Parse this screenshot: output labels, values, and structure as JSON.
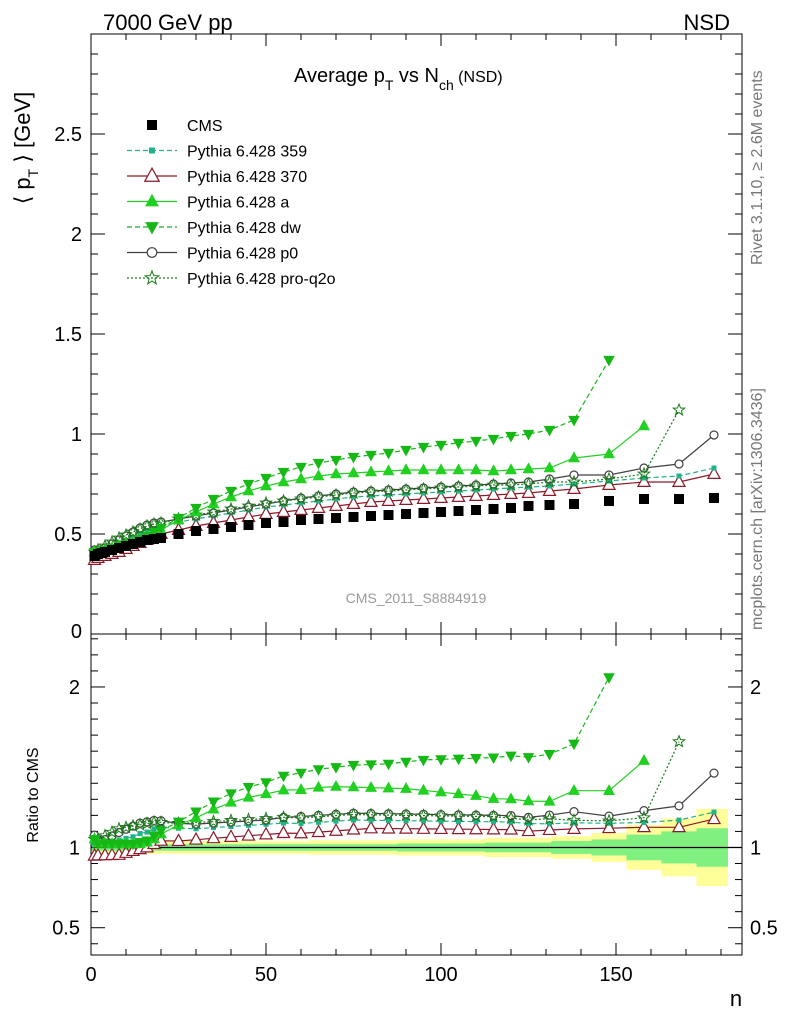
{
  "header": {
    "left": "7000 GeV pp",
    "right": "NSD"
  },
  "title": {
    "main": "Average p",
    "sub_T": "T",
    "mid": " vs N",
    "sub_ch": "ch",
    "tail": " (NSD)"
  },
  "ylabel_top": {
    "open": "⟨ p",
    "sub": "T",
    "close": " ⟩ [GeV]"
  },
  "ylabel_bottom": "Ratio to CMS",
  "xlabel": "n",
  "watermark": "CMS_2011_S8884919",
  "side_text_top": "Rivet 3.1.10, ≥ 2.6M events",
  "side_text_bottom": "mcplots.cern.ch [arXiv:1306.3436]",
  "colors": {
    "cms": "#000000",
    "p359": "#20b28a",
    "p370": "#8b1a2b",
    "pa": "#22d022",
    "pdw": "#16b816",
    "pp0": "#404040",
    "pq2o": "#1a7a1a",
    "band_yellow": "#ffff99",
    "band_green": "#80f080"
  },
  "chart_data": [
    {
      "type": "line",
      "xlim": [
        0,
        186
      ],
      "ylim": [
        0,
        3.0
      ],
      "yticks": [
        0.5,
        1,
        1.5,
        2,
        2.5
      ],
      "ytick_labels": [
        "0.5",
        "1",
        "1.5",
        "2",
        "2.5"
      ],
      "ytick_zero_label": "0",
      "xticks": [
        0,
        50,
        100,
        150
      ],
      "xtick_labels": [
        "0",
        "50",
        "100",
        "150"
      ],
      "legend_placement": "top-left",
      "series": [
        {
          "name": "CMS",
          "key": "cms",
          "marker": "square-filled",
          "style": "none",
          "x": [
            1,
            2,
            3,
            4,
            6,
            8,
            10,
            12,
            14,
            16,
            18,
            20,
            25,
            30,
            35,
            40,
            45,
            50,
            55,
            60,
            65,
            70,
            75,
            80,
            85,
            90,
            95,
            100,
            105,
            110,
            115,
            120,
            125,
            131,
            138,
            148,
            158,
            168,
            178
          ],
          "y": [
            0.39,
            0.4,
            0.405,
            0.41,
            0.42,
            0.43,
            0.44,
            0.45,
            0.46,
            0.47,
            0.475,
            0.48,
            0.5,
            0.515,
            0.525,
            0.535,
            0.545,
            0.555,
            0.56,
            0.57,
            0.575,
            0.58,
            0.585,
            0.59,
            0.595,
            0.6,
            0.605,
            0.61,
            0.615,
            0.62,
            0.625,
            0.63,
            0.64,
            0.645,
            0.65,
            0.665,
            0.675,
            0.675,
            0.68
          ]
        },
        {
          "name": "Pythia 6.428 359",
          "key": "p359",
          "marker": "square-small",
          "style": "dashed",
          "x": [
            1,
            2,
            4,
            6,
            8,
            10,
            12,
            14,
            16,
            18,
            20,
            25,
            30,
            35,
            40,
            45,
            50,
            55,
            60,
            65,
            70,
            75,
            80,
            85,
            90,
            95,
            100,
            105,
            110,
            115,
            120,
            125,
            131,
            138,
            148,
            158,
            168,
            178
          ],
          "y": [
            0.4,
            0.41,
            0.42,
            0.435,
            0.45,
            0.465,
            0.48,
            0.5,
            0.515,
            0.53,
            0.54,
            0.56,
            0.575,
            0.59,
            0.605,
            0.62,
            0.635,
            0.645,
            0.655,
            0.665,
            0.675,
            0.685,
            0.69,
            0.695,
            0.7,
            0.705,
            0.71,
            0.715,
            0.72,
            0.725,
            0.73,
            0.735,
            0.74,
            0.75,
            0.765,
            0.78,
            0.79,
            0.83
          ]
        },
        {
          "name": "Pythia 6.428 370",
          "key": "p370",
          "marker": "triangle-open",
          "style": "solid",
          "x": [
            1,
            2,
            4,
            6,
            8,
            10,
            12,
            14,
            16,
            18,
            20,
            25,
            30,
            35,
            40,
            45,
            50,
            55,
            60,
            65,
            70,
            75,
            80,
            85,
            90,
            95,
            100,
            105,
            110,
            115,
            120,
            125,
            131,
            138,
            148,
            158,
            168,
            178
          ],
          "y": [
            0.37,
            0.38,
            0.39,
            0.4,
            0.41,
            0.425,
            0.44,
            0.455,
            0.47,
            0.485,
            0.5,
            0.52,
            0.54,
            0.555,
            0.57,
            0.585,
            0.6,
            0.61,
            0.62,
            0.63,
            0.64,
            0.65,
            0.66,
            0.665,
            0.67,
            0.675,
            0.68,
            0.685,
            0.69,
            0.695,
            0.7,
            0.705,
            0.715,
            0.725,
            0.745,
            0.76,
            0.76,
            0.8
          ]
        },
        {
          "name": "Pythia 6.428 a",
          "key": "pa",
          "marker": "triangle-filled",
          "style": "solid",
          "x": [
            1,
            2,
            4,
            6,
            8,
            10,
            12,
            14,
            16,
            18,
            20,
            25,
            30,
            35,
            40,
            45,
            50,
            55,
            60,
            65,
            70,
            75,
            80,
            85,
            90,
            95,
            100,
            105,
            110,
            115,
            120,
            125,
            131,
            138,
            148,
            158
          ],
          "y": [
            0.41,
            0.41,
            0.42,
            0.43,
            0.44,
            0.45,
            0.46,
            0.47,
            0.485,
            0.5,
            0.52,
            0.57,
            0.61,
            0.65,
            0.685,
            0.715,
            0.74,
            0.76,
            0.775,
            0.79,
            0.8,
            0.805,
            0.81,
            0.815,
            0.82,
            0.82,
            0.82,
            0.82,
            0.82,
            0.815,
            0.82,
            0.825,
            0.83,
            0.88,
            0.9,
            1.04
          ]
        },
        {
          "name": "Pythia 6.428 dw",
          "key": "pdw",
          "marker": "triangle-down-filled",
          "style": "dashed",
          "x": [
            1,
            2,
            4,
            6,
            8,
            10,
            12,
            14,
            16,
            18,
            20,
            25,
            30,
            35,
            40,
            45,
            50,
            55,
            60,
            65,
            70,
            75,
            80,
            85,
            90,
            95,
            100,
            105,
            110,
            115,
            120,
            125,
            131,
            138,
            148
          ],
          "y": [
            0.41,
            0.41,
            0.42,
            0.43,
            0.44,
            0.45,
            0.46,
            0.475,
            0.49,
            0.51,
            0.53,
            0.58,
            0.63,
            0.675,
            0.715,
            0.75,
            0.78,
            0.81,
            0.835,
            0.855,
            0.87,
            0.885,
            0.895,
            0.905,
            0.92,
            0.935,
            0.945,
            0.955,
            0.965,
            0.975,
            0.99,
            1.0,
            1.02,
            1.07,
            1.37
          ]
        },
        {
          "name": "Pythia 6.428 p0",
          "key": "pp0",
          "marker": "circle-open",
          "style": "solid",
          "x": [
            1,
            2,
            4,
            6,
            8,
            10,
            12,
            14,
            16,
            18,
            20,
            25,
            30,
            35,
            40,
            45,
            50,
            55,
            60,
            65,
            70,
            75,
            80,
            85,
            90,
            95,
            100,
            105,
            110,
            115,
            120,
            125,
            131,
            138,
            148,
            158,
            168,
            178
          ],
          "y": [
            0.42,
            0.42,
            0.43,
            0.45,
            0.47,
            0.49,
            0.51,
            0.53,
            0.545,
            0.555,
            0.56,
            0.575,
            0.59,
            0.605,
            0.62,
            0.635,
            0.65,
            0.665,
            0.68,
            0.69,
            0.7,
            0.71,
            0.715,
            0.72,
            0.725,
            0.73,
            0.735,
            0.74,
            0.745,
            0.75,
            0.755,
            0.76,
            0.775,
            0.795,
            0.795,
            0.83,
            0.85,
            0.995
          ]
        },
        {
          "name": "Pythia 6.428 pro-q2o",
          "key": "pq2o",
          "marker": "star-open",
          "style": "dotted",
          "x": [
            1,
            2,
            4,
            6,
            8,
            10,
            12,
            14,
            16,
            18,
            20,
            25,
            30,
            35,
            40,
            45,
            50,
            55,
            60,
            65,
            70,
            75,
            80,
            85,
            90,
            95,
            100,
            105,
            110,
            115,
            120,
            125,
            131,
            138,
            148,
            158,
            168
          ],
          "y": [
            0.41,
            0.42,
            0.44,
            0.46,
            0.48,
            0.495,
            0.51,
            0.525,
            0.54,
            0.55,
            0.555,
            0.575,
            0.595,
            0.61,
            0.625,
            0.64,
            0.655,
            0.665,
            0.675,
            0.685,
            0.695,
            0.705,
            0.71,
            0.715,
            0.72,
            0.725,
            0.73,
            0.735,
            0.74,
            0.745,
            0.745,
            0.75,
            0.76,
            0.76,
            0.775,
            0.8,
            1.12
          ]
        }
      ]
    },
    {
      "type": "line",
      "ylabel": "Ratio to CMS",
      "xlabel": "n",
      "xlim": [
        0,
        186
      ],
      "ylim": [
        0.33,
        2.33
      ],
      "yticks": [
        0.5,
        1,
        2
      ],
      "ytick_labels": [
        "0.5",
        "1",
        "2"
      ],
      "xticks": [
        0,
        50,
        100,
        150
      ],
      "xtick_labels": [
        "0",
        "50",
        "100",
        "150"
      ],
      "reference_line": 1.0,
      "uncertainty_bands": {
        "x": [
          1,
          25,
          50,
          75,
          100,
          125,
          138,
          148,
          158,
          168,
          178
        ],
        "green_halfwidth": [
          0.02,
          0.02,
          0.02,
          0.02,
          0.025,
          0.03,
          0.04,
          0.05,
          0.08,
          0.1,
          0.12
        ],
        "yellow_halfwidth": [
          0.04,
          0.04,
          0.04,
          0.045,
          0.05,
          0.06,
          0.07,
          0.09,
          0.14,
          0.18,
          0.24
        ]
      }
    }
  ]
}
